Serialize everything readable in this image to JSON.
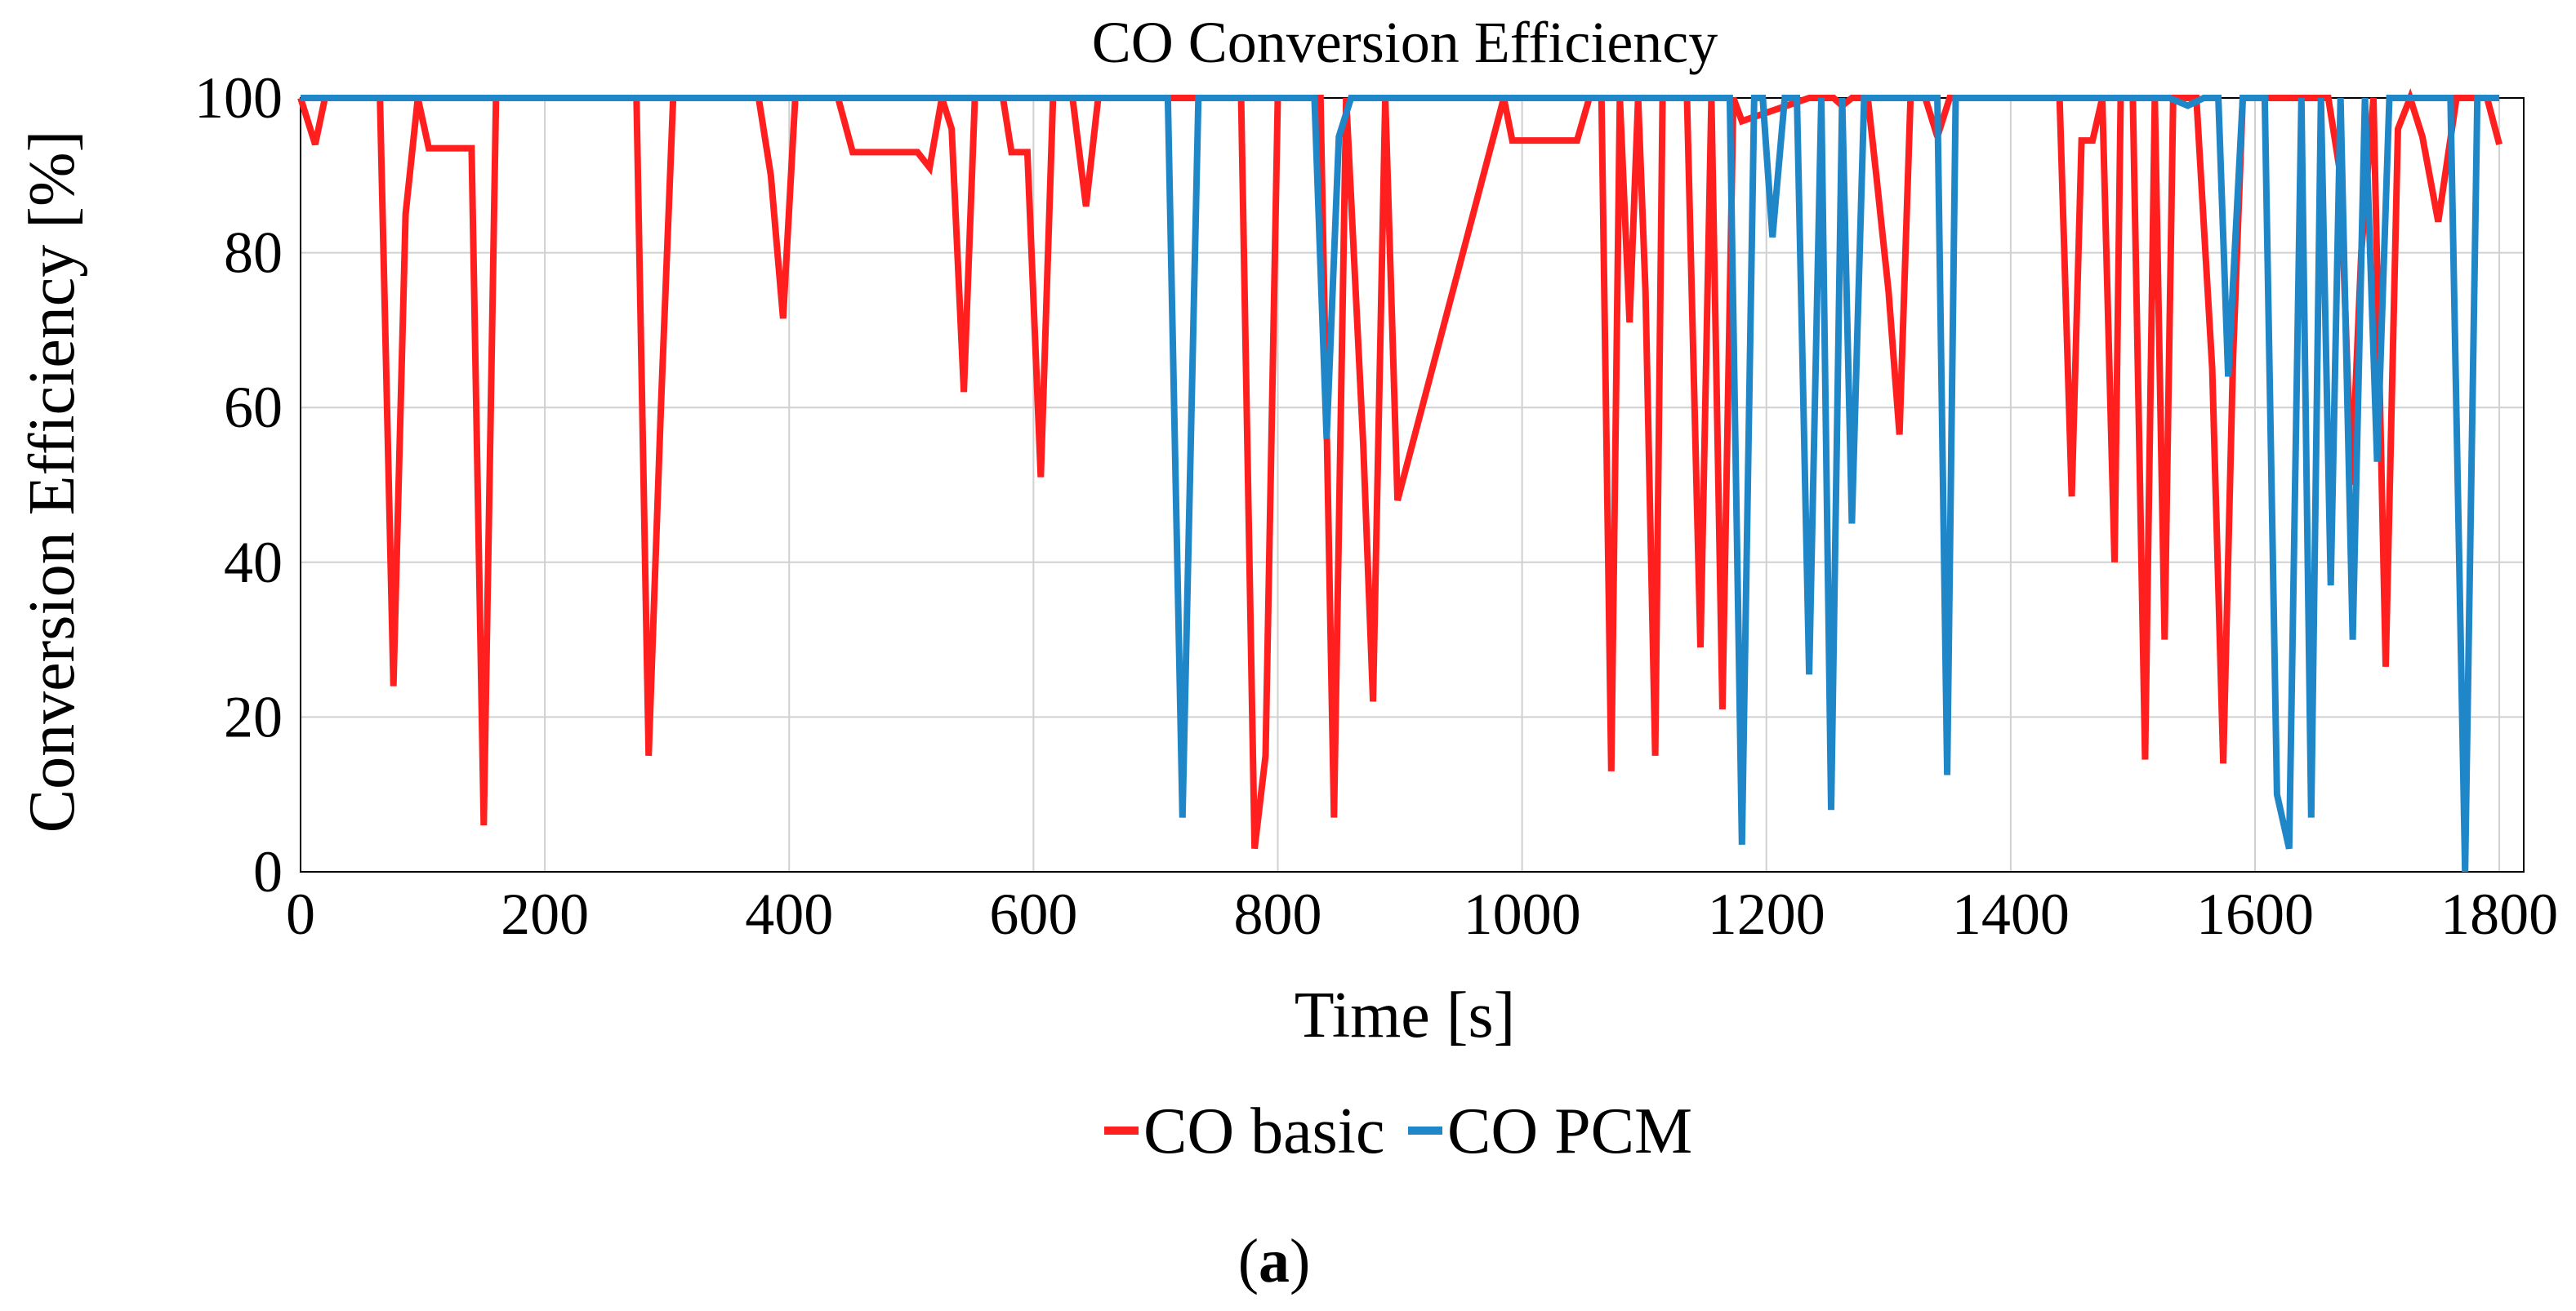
{
  "chart_data": {
    "type": "line",
    "title": "CO Conversion Efficiency",
    "xlabel": "Time [s]",
    "ylabel": "Conversion Efficiency [%]",
    "xlim": [
      0,
      1820
    ],
    "ylim": [
      0,
      100
    ],
    "xticks": [
      0,
      200,
      400,
      600,
      800,
      1000,
      1200,
      1400,
      1600,
      1800
    ],
    "yticks": [
      0,
      20,
      40,
      60,
      80,
      100
    ],
    "grid": true,
    "legend_position": "bottom-center",
    "caption": "a",
    "series": [
      {
        "name": "CO basic",
        "color": "#ff1f1f",
        "x": [
          0,
          12,
          20,
          65,
          76,
          86,
          96,
          105,
          140,
          150,
          160,
          275,
          285,
          295,
          305,
          375,
          385,
          395,
          405,
          440,
          452,
          505,
          515,
          525,
          533,
          543,
          552,
          575,
          582,
          595,
          606,
          616,
          632,
          643,
          653,
          770,
          781,
          790,
          800,
          835,
          846,
          856,
          870,
          878,
          888,
          898,
          985,
          992,
          1000,
          1045,
          1055,
          1065,
          1073,
          1080,
          1088,
          1095,
          1101,
          1109,
          1115,
          1122,
          1135,
          1146,
          1155,
          1164,
          1173,
          1180,
          1235,
          1245,
          1255,
          1262,
          1270,
          1283,
          1290,
          1300,
          1309,
          1318,
          1330,
          1340,
          1350,
          1440,
          1450,
          1458,
          1467,
          1475,
          1485,
          1490,
          1500,
          1510,
          1518,
          1526,
          1533,
          1541,
          1552,
          1565,
          1574,
          1582,
          1590,
          1600,
          1610,
          1660,
          1670,
          1679,
          1687,
          1697,
          1707,
          1717,
          1727,
          1737,
          1750,
          1765,
          1775,
          1782,
          1790,
          1800
        ],
        "y": [
          100,
          94,
          100,
          100,
          24,
          85,
          100,
          93.5,
          93.5,
          6,
          100,
          100,
          15,
          60,
          100,
          100,
          90,
          71.5,
          100,
          100,
          93,
          93,
          91,
          100,
          96,
          62,
          100,
          100,
          93,
          93,
          51,
          100,
          100,
          86,
          100,
          100,
          3,
          15,
          100,
          100,
          7,
          100,
          55,
          22,
          100,
          48,
          100,
          94.5,
          94.5,
          94.5,
          100,
          100,
          13,
          100,
          71,
          100,
          75,
          15,
          100,
          100,
          100,
          29,
          100,
          21,
          100,
          97,
          100,
          100,
          100,
          99,
          100,
          100,
          90,
          75,
          56.5,
          100,
          100,
          95,
          100,
          100,
          48.5,
          94.5,
          94.5,
          100,
          40,
          100,
          100,
          14.5,
          100,
          30,
          100,
          100,
          100,
          65,
          14,
          66,
          100,
          100,
          100,
          100,
          90,
          50,
          80,
          100,
          26.5,
          96,
          100,
          95,
          84,
          100,
          100,
          100,
          100,
          94
        ]
      },
      {
        "name": "CO PCM",
        "color": "#1f86c8",
        "x": [
          0,
          710,
          722,
          735,
          745,
          830,
          840,
          850,
          860,
          1170,
          1180,
          1190,
          1197,
          1205,
          1215,
          1225,
          1235,
          1245,
          1253,
          1262,
          1270,
          1280,
          1340,
          1348,
          1355,
          1365,
          1520,
          1530,
          1545,
          1558,
          1570,
          1578,
          1590,
          1608,
          1618,
          1628,
          1638,
          1646,
          1654,
          1662,
          1670,
          1680,
          1690,
          1700,
          1710,
          1760,
          1772,
          1782,
          1790,
          1800
        ],
        "y": [
          100,
          100,
          7,
          100,
          100,
          100,
          56,
          95,
          100,
          100,
          3.5,
          100,
          100,
          82,
          100,
          100,
          25.5,
          100,
          8,
          100,
          45,
          100,
          100,
          12.5,
          100,
          100,
          100,
          100,
          99,
          100,
          100,
          64,
          100,
          100,
          10,
          3,
          100,
          7,
          100,
          37,
          100,
          30,
          100,
          53,
          100,
          100,
          0,
          100,
          100,
          100
        ]
      }
    ]
  }
}
